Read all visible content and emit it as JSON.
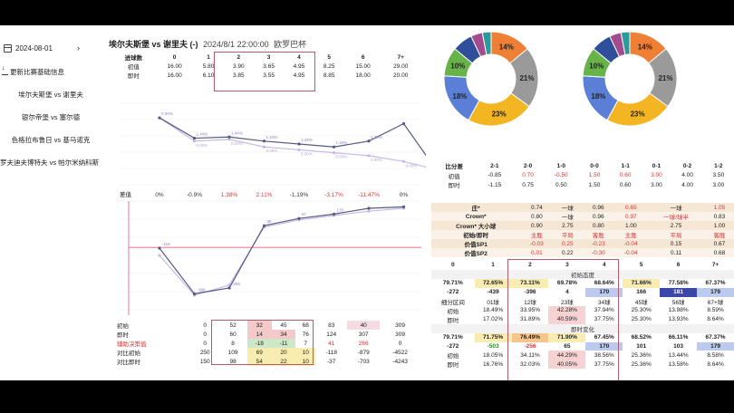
{
  "sidebar": {
    "date": "2024-08-01",
    "next_arrow": "›",
    "update_label": "更新比赛基础信息",
    "matches": [
      "埃尔夫斯堡 vs 谢里夫",
      "银尔帝堡 vs 塞尔德",
      "色格拉布鲁日 vs 基马诺克",
      "罗夫迪夫博特夫 vs 帕尔米纳科斯"
    ]
  },
  "header": {
    "title": "埃尔夫斯堡 vs 谢里夫 (-)",
    "datetime": "2024/8/1 22:00:00",
    "league": "欧罗巴杯"
  },
  "odds_top": {
    "headers": [
      "进球数",
      "0",
      "1",
      "2",
      "3",
      "4",
      "5",
      "6",
      "7+"
    ],
    "rows": [
      [
        "初值",
        "16.00",
        "5.80",
        "3.90",
        "3.65",
        "4.95",
        "8.25",
        "15.00",
        "29.00"
      ],
      [
        "即时",
        "16.00",
        "6.10",
        "3.85",
        "3.55",
        "4.95",
        "8.85",
        "18.00",
        "20.00"
      ]
    ]
  },
  "line_top": {
    "points_a": [
      4.95,
      4.6,
      4.62,
      4.55,
      4.5,
      4.45,
      4.55,
      4.85,
      4.0
    ],
    "points_b": [
      4.95,
      4.55,
      4.58,
      4.45,
      4.4,
      4.35,
      4.3,
      4.2,
      4.05
    ],
    "labels_a": [
      "0.00%",
      "1.44%",
      "1.44%",
      "1.44%",
      "1.44%",
      "1.34%",
      "1.30%",
      "",
      "1.07%"
    ],
    "labels_b": [
      "",
      "0.00%",
      "0.00%",
      "0.00%",
      "0.00%",
      "0.00%",
      "0.00%",
      "0.00%",
      ""
    ]
  },
  "diff_row": {
    "label": "差值",
    "values": [
      "0%",
      "-0.9%",
      "1.38%",
      "2.11%",
      "-1.19%",
      "-3.17%",
      "-11.47%",
      "0%"
    ]
  },
  "line_bottom": {
    "series_a": [
      17.5,
      -14.0,
      -10.0,
      33.0,
      38.0,
      41.0,
      45.0,
      46.0
    ],
    "series_b": [
      12.5,
      -15.0,
      -8.0,
      32.0,
      37.0,
      40.0,
      43.0,
      45.0
    ],
    "labels": [
      "-119",
      "-396",
      "-256",
      "35",
      "57",
      "170",
      "",
      ""
    ]
  },
  "bottom_left": {
    "rows": [
      {
        "label": "初始",
        "values": [
          "0",
          "52",
          "32",
          "45",
          "68",
          "83",
          "40",
          "309"
        ]
      },
      {
        "label": "即时",
        "values": [
          "0",
          "60",
          "14",
          "34",
          "76",
          "124",
          "307",
          "309"
        ]
      },
      {
        "label": "辅助决策值",
        "values": [
          "0",
          "8",
          "-18",
          "-11",
          "7",
          "41",
          "266",
          "0"
        ]
      },
      {
        "label": "对比初始",
        "values": [
          "250",
          "109",
          "69",
          "20",
          "10",
          "-118",
          "-879",
          "-4522"
        ]
      },
      {
        "label": "对比即时",
        "values": [
          "150",
          "98",
          "54",
          "22",
          "10",
          "-37",
          "-703",
          "-4243"
        ]
      }
    ]
  },
  "pie_left": {
    "slices": [
      {
        "pct": 14,
        "color": "#ef7f34"
      },
      {
        "pct": 21,
        "color": "#9a9a9a"
      },
      {
        "pct": 23,
        "color": "#f3b522"
      },
      {
        "pct": 18,
        "color": "#5b7fd6"
      },
      {
        "pct": 10,
        "color": "#68b24a"
      },
      {
        "pct": 7,
        "color": "#2f4f9a"
      },
      {
        "pct": 4,
        "color": "#a24c8f"
      },
      {
        "pct": 3,
        "color": "#2a9a9a"
      }
    ],
    "labels": [
      "14%",
      "21%",
      "23%",
      "18%",
      "10%"
    ]
  },
  "pie_right": {
    "slices": [
      {
        "pct": 14,
        "color": "#ef7f34"
      },
      {
        "pct": 21,
        "color": "#9a9a9a"
      },
      {
        "pct": 23,
        "color": "#f3b522"
      },
      {
        "pct": 18,
        "color": "#5b7fd6"
      },
      {
        "pct": 10,
        "color": "#68b24a"
      },
      {
        "pct": 7,
        "color": "#2f4f9a"
      },
      {
        "pct": 4,
        "color": "#a24c8f"
      },
      {
        "pct": 3,
        "color": "#2a9a9a"
      }
    ],
    "labels": [
      "14%",
      "21%",
      "23%",
      "18%",
      "10%"
    ]
  },
  "score_table": {
    "headers": [
      "比分差",
      "2-1",
      "2-0",
      "1-0",
      "0-0",
      "1-1",
      "0-1",
      "0-2",
      "1-2"
    ],
    "rows": [
      [
        "初值",
        "-0.85",
        "0.70",
        "-0.50",
        "1.50",
        "0.60",
        "3.00",
        "4.00",
        "3.50"
      ],
      [
        "即时",
        "-1.15",
        "0.75",
        "0.50",
        "1.50",
        "0.60",
        "3.00",
        "4.00",
        "3.00"
      ]
    ]
  },
  "mid_table": {
    "rows": [
      [
        "庄*",
        "0.74",
        "一球",
        "0.96",
        "0.65",
        "一球",
        "1.05"
      ],
      [
        "Crown*",
        "0.80",
        "一球",
        "0.96",
        "0.97",
        "一球/球半",
        "0.83"
      ],
      [
        "Crown* 大小球",
        "0.90",
        "2.75",
        "0.80",
        "1.00",
        "2.75",
        "1.00"
      ],
      [
        "初始/即时",
        "主胜",
        "平局",
        "客胜",
        "主胜",
        "平局",
        "客胜"
      ],
      [
        "价值SP1",
        "-0.03",
        "0.25",
        "-0.23",
        "-0.04",
        "0.15",
        "0.67"
      ],
      [
        "价值SP2",
        "0.01",
        "0.22",
        "-0.30",
        "-0.04",
        "0.11",
        "0.68"
      ]
    ],
    "goal_headers": [
      "0",
      "1",
      "2",
      "3",
      "4",
      "5",
      "6",
      "7+"
    ]
  },
  "bot_right": {
    "section1": "初始态度",
    "section2": "即时变化",
    "row_a": [
      "79.71%",
      "72.65%",
      "73.11%",
      "69.78%",
      "68.64%",
      "71.66%",
      "77.58%",
      "67.37%"
    ],
    "row_b": [
      "-272",
      "-439",
      "-396",
      "4",
      "170",
      "166",
      "181",
      "179"
    ],
    "row_c": [
      "细分区间",
      "01球",
      "12球",
      "23球",
      "34球",
      "45球",
      "56球",
      "67+球"
    ],
    "row_d": [
      "初始",
      "18.49%",
      "33.95%",
      "42.28%",
      "37.94%",
      "25.30%",
      "13.98%",
      "8.59%"
    ],
    "row_e": [
      "即时",
      "17.02%",
      "31.89%",
      "40.59%",
      "37.75%",
      "25.30%",
      "13.93%",
      "8.64%"
    ],
    "row_f": [
      "79.71%",
      "71.75%",
      "76.49%",
      "71.90%",
      "67.45%",
      "68.52%",
      "66.11%",
      "67.37%"
    ],
    "row_g": [
      "-272",
      "-503",
      "-256",
      "65",
      "170",
      "101",
      "103",
      "179"
    ],
    "row_h": [
      "初始",
      "18.05%",
      "34.11%",
      "44.29%",
      "38.56%",
      "25.36%",
      "13.44%",
      "8.58%"
    ],
    "row_i": [
      "即时",
      "16.76%",
      "32.03%",
      "40.05%",
      "37.75%",
      "25.36%",
      "13.58%",
      "8.64%"
    ]
  }
}
